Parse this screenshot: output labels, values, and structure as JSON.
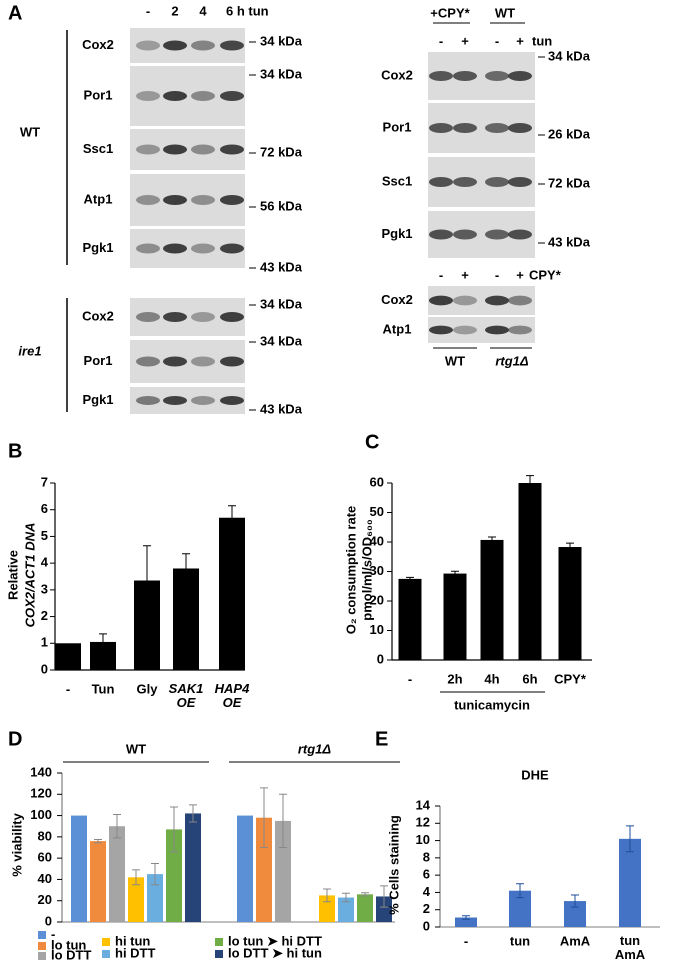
{
  "panel_a": {
    "label": "A",
    "left": {
      "lanes": [
        "-",
        "2",
        "4",
        "6 h tun"
      ],
      "groups": [
        {
          "name": "WT",
          "rows": [
            "Cox2",
            "Por1",
            "Ssc1",
            "Atp1",
            "Pgk1"
          ]
        },
        {
          "name": "ire1",
          "rows": [
            "Cox2",
            "Por1",
            "Pgk1"
          ]
        }
      ],
      "markers": [
        "34 kDa",
        "34 kDa",
        "72 kDa",
        "56 kDa",
        "43 kDa",
        "34 kDa",
        "34 kDa",
        "43 kDa"
      ]
    },
    "right_top": {
      "strains": [
        "+CPY*",
        "WT"
      ],
      "lanes": [
        "-",
        "+",
        "-",
        "+"
      ],
      "treatment": "tun",
      "rows": [
        "Cox2",
        "Por1",
        "Ssc1",
        "Pgk1"
      ],
      "markers": [
        "34 kDa",
        "26 kDa",
        "72 kDa",
        "43 kDa"
      ]
    },
    "right_bottom": {
      "lanes": [
        "-",
        "+",
        "-",
        "+"
      ],
      "treatment": "CPY*",
      "rows": [
        "Cox2",
        "Atp1"
      ],
      "strains": [
        "WT",
        "rtg1Δ"
      ]
    }
  },
  "chart_data": [
    {
      "type": "bar",
      "panel_label": "B",
      "y_label": [
        "Relative",
        "COX2/ACT1 DNA"
      ],
      "categories": [
        "-",
        "Tun",
        "Gly",
        "SAK1 OE",
        "HAP4 OE"
      ],
      "values": [
        1,
        1.05,
        3.35,
        3.8,
        5.7
      ],
      "errors": [
        0,
        0.3,
        1.3,
        0.55,
        0.45
      ],
      "color": "#000000",
      "ylim": [
        0,
        7
      ],
      "yticks": [
        0,
        1,
        2,
        3,
        4,
        5,
        6,
        7
      ]
    },
    {
      "type": "bar",
      "panel_label": "C",
      "y_label": [
        "O₂ consumption rate",
        "pmol/ml/s/OD₆₀₀"
      ],
      "x_group_label": "tunicamycin",
      "categories": [
        "-",
        "2h",
        "4h",
        "6h",
        "CPY*"
      ],
      "values": [
        27.5,
        29.3,
        40.7,
        60,
        38.3
      ],
      "errors": [
        0.5,
        0.8,
        1,
        2.5,
        1.3
      ],
      "color": "#000000",
      "ylim": [
        0,
        60
      ],
      "yticks": [
        0,
        10,
        20,
        30,
        40,
        50,
        60
      ]
    },
    {
      "type": "grouped-bar",
      "panel_label": "D",
      "y_label": "% viability",
      "categories": [
        "WT",
        "rtg1Δ"
      ],
      "series": [
        {
          "name": "-",
          "color": "#5b8fd6",
          "values": [
            100,
            100
          ],
          "errors": [
            0,
            0
          ]
        },
        {
          "name": "lo tun",
          "color": "#f08a3c",
          "values": [
            76,
            98
          ],
          "errors": [
            1.5,
            28
          ]
        },
        {
          "name": "lo DTT",
          "color": "#a5a5a5",
          "values": [
            90,
            95
          ],
          "errors": [
            11,
            25
          ]
        },
        {
          "name": "hi tun",
          "color": "#ffc000",
          "values": [
            42,
            25
          ],
          "errors": [
            7,
            6
          ]
        },
        {
          "name": "hi DTT",
          "color": "#6aaee0",
          "values": [
            45,
            23
          ],
          "errors": [
            10,
            4
          ]
        },
        {
          "name": "lo tun ➤ hi DTT",
          "color": "#70ad47",
          "values": [
            87,
            26
          ],
          "errors": [
            21,
            1.5
          ]
        },
        {
          "name": "lo DTT ➤ hi tun",
          "color": "#264478",
          "values": [
            102,
            24
          ],
          "errors": [
            8,
            10
          ]
        }
      ],
      "ylim": [
        0,
        140
      ],
      "yticks": [
        0,
        20,
        40,
        60,
        80,
        100,
        120,
        140
      ]
    },
    {
      "type": "bar",
      "panel_label": "E",
      "title": "DHE",
      "y_label": "% Cells staining",
      "categories": [
        "-",
        "tun",
        "AmA",
        "tun AmA"
      ],
      "values": [
        1.1,
        4.2,
        3.0,
        10.2
      ],
      "errors": [
        0.2,
        0.8,
        0.7,
        1.5
      ],
      "color": "#4472c4",
      "ylim": [
        0,
        14
      ],
      "yticks": [
        0,
        2,
        4,
        6,
        8,
        10,
        12,
        14
      ]
    }
  ]
}
